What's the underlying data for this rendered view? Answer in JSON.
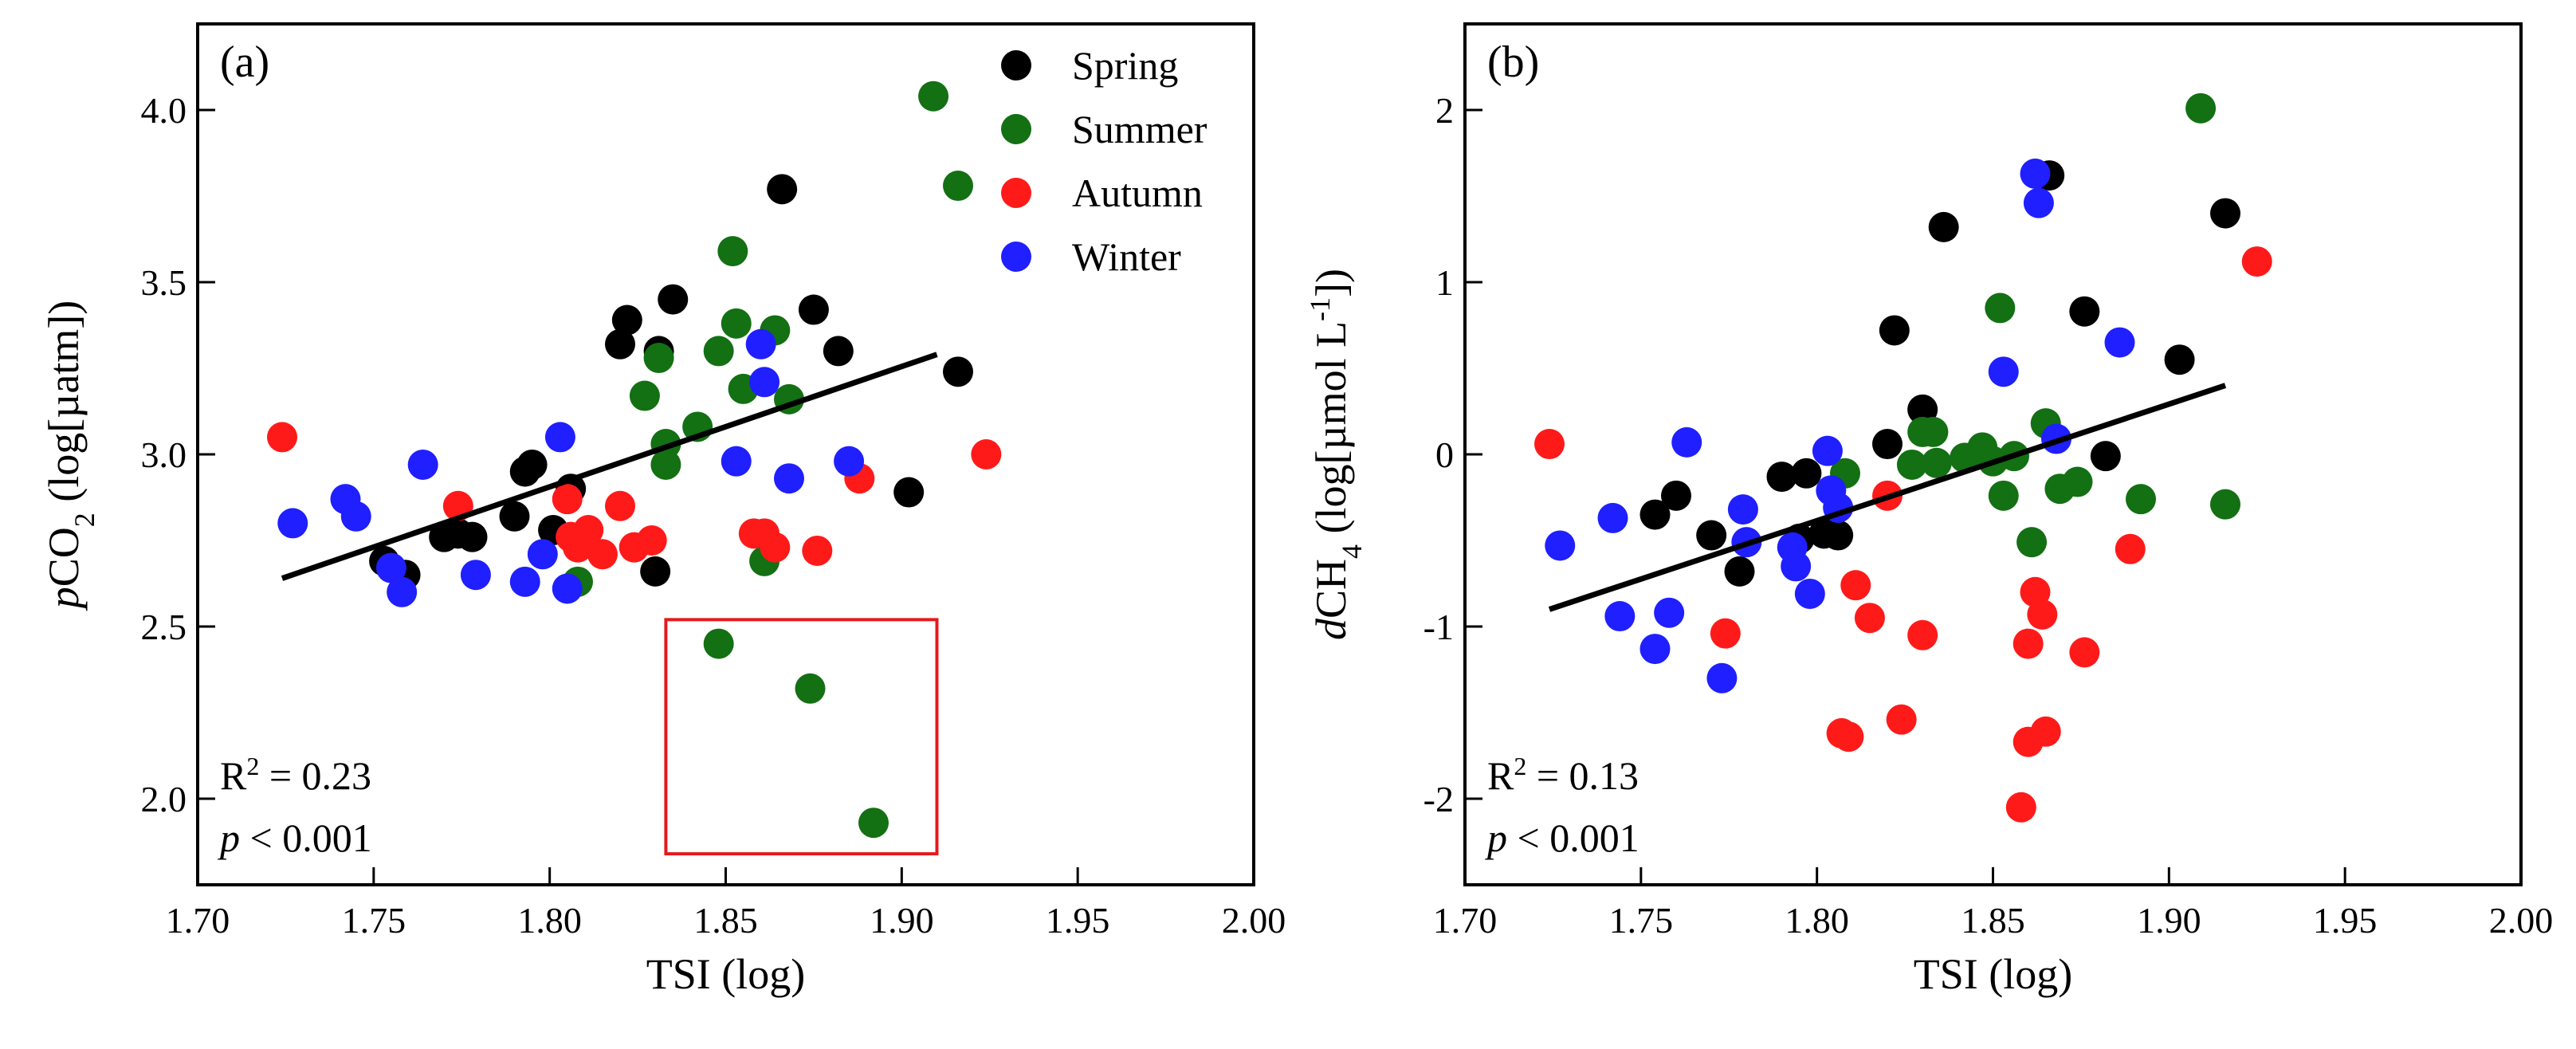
{
  "colors": {
    "Spring": "#000000",
    "Summer": "#137013",
    "Autumn": "#ff1a1a",
    "Winter": "#1f1fff",
    "fit_line": "#000000",
    "box": "#e31a1c"
  },
  "chart_data": [
    {
      "type": "scatter",
      "panel_label": "(a)",
      "xlabel": "TSI (log)",
      "ylabel": {
        "prefix": "p",
        "main": "CO",
        "sub": "2",
        "suffix": " (log[µatm])"
      },
      "xlim": [
        1.7,
        2.0
      ],
      "ylim": [
        1.75,
        4.25
      ],
      "x_ticks": [
        "1.70",
        "1.75",
        "1.80",
        "1.85",
        "1.90",
        "1.95",
        "2.00"
      ],
      "y_ticks": [
        "2.0",
        "2.5",
        "3.0",
        "3.5",
        "4.0"
      ],
      "legend": [
        "Spring",
        "Summer",
        "Autumn",
        "Winter"
      ],
      "stats": {
        "r2_label": "R",
        "r2_sup": "2",
        "r2_value": " = 0.23",
        "p_label": "p",
        "p_value": " < 0.001"
      },
      "fit": {
        "x": [
          1.724,
          1.91
        ],
        "y": [
          2.64,
          3.29
        ]
      },
      "highlight_box": {
        "x": [
          1.833,
          1.91
        ],
        "y": [
          1.84,
          2.52
        ]
      },
      "series": [
        {
          "name": "Spring",
          "points": [
            [
              1.753,
              2.69
            ],
            [
              1.759,
              2.65
            ],
            [
              1.77,
              2.76
            ],
            [
              1.774,
              2.77
            ],
            [
              1.778,
              2.76
            ],
            [
              1.79,
              2.82
            ],
            [
              1.793,
              2.95
            ],
            [
              1.795,
              2.97
            ],
            [
              1.801,
              2.78
            ],
            [
              1.806,
              2.9
            ],
            [
              1.82,
              3.32
            ],
            [
              1.822,
              3.39
            ],
            [
              1.83,
              2.66
            ],
            [
              1.831,
              3.3
            ],
            [
              1.835,
              3.45
            ],
            [
              1.866,
              3.77
            ],
            [
              1.875,
              3.42
            ],
            [
              1.882,
              3.3
            ],
            [
              1.902,
              2.89
            ],
            [
              1.916,
              3.24
            ]
          ]
        },
        {
          "name": "Summer",
          "points": [
            [
              1.808,
              2.63
            ],
            [
              1.827,
              3.17
            ],
            [
              1.831,
              3.28
            ],
            [
              1.833,
              2.97
            ],
            [
              1.833,
              3.03
            ],
            [
              1.842,
              3.08
            ],
            [
              1.848,
              2.45
            ],
            [
              1.848,
              3.3
            ],
            [
              1.852,
              3.59
            ],
            [
              1.853,
              3.38
            ],
            [
              1.855,
              3.19
            ],
            [
              1.861,
              2.69
            ],
            [
              1.864,
              3.36
            ],
            [
              1.868,
              3.16
            ],
            [
              1.874,
              2.32
            ],
            [
              1.892,
              1.93
            ],
            [
              1.909,
              4.04
            ],
            [
              1.916,
              3.78
            ]
          ]
        },
        {
          "name": "Autumn",
          "points": [
            [
              1.724,
              3.05
            ],
            [
              1.774,
              2.85
            ],
            [
              1.805,
              2.87
            ],
            [
              1.806,
              2.76
            ],
            [
              1.808,
              2.73
            ],
            [
              1.811,
              2.78
            ],
            [
              1.815,
              2.71
            ],
            [
              1.82,
              2.85
            ],
            [
              1.824,
              2.73
            ],
            [
              1.829,
              2.75
            ],
            [
              1.858,
              2.77
            ],
            [
              1.861,
              2.77
            ],
            [
              1.864,
              2.73
            ],
            [
              1.876,
              2.72
            ],
            [
              1.888,
              2.93
            ],
            [
              1.924,
              3.0
            ]
          ]
        },
        {
          "name": "Winter",
          "points": [
            [
              1.727,
              2.8
            ],
            [
              1.742,
              2.87
            ],
            [
              1.745,
              2.82
            ],
            [
              1.755,
              2.67
            ],
            [
              1.758,
              2.6
            ],
            [
              1.764,
              2.97
            ],
            [
              1.779,
              2.65
            ],
            [
              1.793,
              2.63
            ],
            [
              1.798,
              2.71
            ],
            [
              1.803,
              3.05
            ],
            [
              1.805,
              2.61
            ],
            [
              1.853,
              2.98
            ],
            [
              1.86,
              3.32
            ],
            [
              1.861,
              3.21
            ],
            [
              1.868,
              2.93
            ],
            [
              1.885,
              2.98
            ]
          ]
        }
      ]
    },
    {
      "type": "scatter",
      "panel_label": "(b)",
      "xlabel": "TSI (log)",
      "ylabel": {
        "prefix": "d",
        "main": "CH",
        "sub": "4",
        "suffix": " (log[µmol L",
        "sup": "-1",
        "tail": "])"
      },
      "xlim": [
        1.7,
        2.0
      ],
      "ylim": [
        -2.5,
        2.5
      ],
      "x_ticks": [
        "1.70",
        "1.75",
        "1.80",
        "1.85",
        "1.90",
        "1.95",
        "2.00"
      ],
      "y_ticks": [
        "-2",
        "-1",
        "0",
        "1",
        "2"
      ],
      "stats": {
        "r2_label": "R",
        "r2_sup": "2",
        "r2_value": " = 0.13",
        "p_label": "p",
        "p_value": " < 0.001"
      },
      "fit": {
        "x": [
          1.724,
          1.916
        ],
        "y": [
          -0.9,
          0.4
        ]
      },
      "series": [
        {
          "name": "Spring",
          "points": [
            [
              1.754,
              -0.35
            ],
            [
              1.76,
              -0.24
            ],
            [
              1.77,
              -0.47
            ],
            [
              1.778,
              -0.68
            ],
            [
              1.79,
              -0.13
            ],
            [
              1.795,
              -0.49
            ],
            [
              1.797,
              -0.11
            ],
            [
              1.802,
              -0.46
            ],
            [
              1.806,
              -0.47
            ],
            [
              1.82,
              0.06
            ],
            [
              1.822,
              0.72
            ],
            [
              1.83,
              0.26
            ],
            [
              1.836,
              1.32
            ],
            [
              1.866,
              1.62
            ],
            [
              1.876,
              0.83
            ],
            [
              1.882,
              -0.01
            ],
            [
              1.903,
              0.55
            ],
            [
              1.916,
              1.4
            ]
          ]
        },
        {
          "name": "Summer",
          "points": [
            [
              1.808,
              -0.11
            ],
            [
              1.827,
              -0.06
            ],
            [
              1.83,
              0.13
            ],
            [
              1.833,
              0.13
            ],
            [
              1.834,
              -0.05
            ],
            [
              1.842,
              -0.02
            ],
            [
              1.847,
              0.04
            ],
            [
              1.85,
              -0.04
            ],
            [
              1.852,
              0.85
            ],
            [
              1.853,
              -0.24
            ],
            [
              1.856,
              -0.01
            ],
            [
              1.861,
              -0.51
            ],
            [
              1.865,
              0.18
            ],
            [
              1.869,
              -0.2
            ],
            [
              1.874,
              -0.16
            ],
            [
              1.892,
              -0.26
            ],
            [
              1.909,
              2.01
            ],
            [
              1.916,
              -0.29
            ]
          ]
        },
        {
          "name": "Autumn",
          "points": [
            [
              1.724,
              0.06
            ],
            [
              1.774,
              -1.04
            ],
            [
              1.807,
              -1.62
            ],
            [
              1.809,
              -1.64
            ],
            [
              1.811,
              -0.76
            ],
            [
              1.815,
              -0.95
            ],
            [
              1.82,
              -0.24
            ],
            [
              1.824,
              -1.54
            ],
            [
              1.83,
              -1.05
            ],
            [
              1.858,
              -2.05
            ],
            [
              1.86,
              -1.67
            ],
            [
              1.86,
              -1.1
            ],
            [
              1.862,
              -0.8
            ],
            [
              1.864,
              -0.93
            ],
            [
              1.865,
              -1.61
            ],
            [
              1.876,
              -1.15
            ],
            [
              1.889,
              -0.55
            ],
            [
              1.925,
              1.12
            ]
          ]
        },
        {
          "name": "Winter",
          "points": [
            [
              1.727,
              -0.53
            ],
            [
              1.742,
              -0.37
            ],
            [
              1.744,
              -0.94
            ],
            [
              1.754,
              -1.13
            ],
            [
              1.758,
              -0.92
            ],
            [
              1.763,
              0.07
            ],
            [
              1.773,
              -1.3
            ],
            [
              1.779,
              -0.32
            ],
            [
              1.78,
              -0.51
            ],
            [
              1.793,
              -0.54
            ],
            [
              1.794,
              -0.65
            ],
            [
              1.798,
              -0.81
            ],
            [
              1.803,
              0.02
            ],
            [
              1.804,
              -0.21
            ],
            [
              1.806,
              -0.31
            ],
            [
              1.853,
              0.48
            ],
            [
              1.862,
              1.63
            ],
            [
              1.863,
              1.46
            ],
            [
              1.868,
              0.09
            ],
            [
              1.886,
              0.65
            ]
          ]
        }
      ]
    }
  ]
}
